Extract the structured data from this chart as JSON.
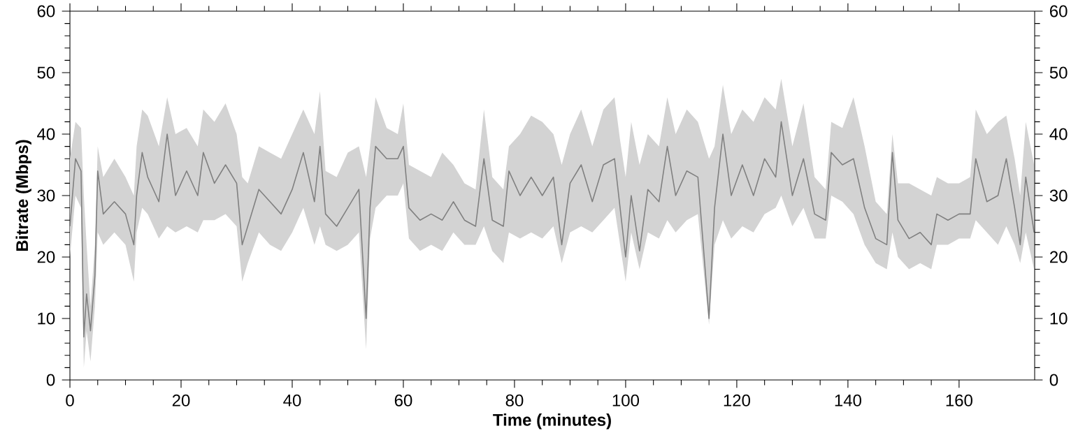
{
  "chart_data": {
    "type": "line",
    "xlabel": "Time (minutes)",
    "ylabel": "Bitrate (Mbps)",
    "xlim": [
      0,
      173.6
    ],
    "xticks": [
      0,
      20,
      40,
      60,
      80,
      100,
      120,
      140,
      160
    ],
    "ylim": [
      0,
      60
    ],
    "yticks": [
      0,
      10,
      20,
      30,
      40,
      50,
      60
    ],
    "y2lim": [
      0,
      60
    ],
    "y2ticks": [
      0,
      10,
      20,
      30,
      40,
      50,
      60
    ],
    "grid": false,
    "legend": false,
    "marker": "none",
    "line_style": "solid",
    "series": [
      {
        "color": "#808080",
        "x": [
          0,
          1,
          2,
          2.5,
          3,
          3.7,
          4.5,
          5,
          6,
          8,
          10,
          11.5,
          12,
          13,
          14,
          16,
          17.5,
          19,
          21,
          23,
          24,
          26,
          28,
          30,
          31,
          32,
          34,
          36,
          38,
          40,
          42,
          44,
          45,
          46,
          48,
          50,
          52,
          53.3,
          54,
          55,
          57,
          59,
          60,
          61,
          63,
          65,
          67,
          69,
          71,
          73,
          74.5,
          76,
          78,
          79,
          81,
          83,
          85,
          87,
          88.5,
          90,
          92,
          94,
          96,
          98,
          99,
          100,
          101,
          102.5,
          104,
          106,
          107.5,
          109,
          111,
          113,
          115,
          116,
          117.5,
          119,
          121,
          123,
          125,
          127,
          128,
          130,
          132,
          134,
          136,
          137,
          139,
          141,
          143,
          145,
          147,
          148,
          149,
          151,
          153,
          155,
          156,
          158,
          160,
          162,
          163,
          165,
          167,
          168.5,
          170,
          171,
          172,
          173.5
        ],
        "values": [
          25,
          36,
          34,
          7,
          14,
          8,
          17,
          34,
          27,
          29,
          27,
          22,
          30,
          37,
          33,
          29,
          40,
          30,
          34,
          30,
          37,
          32,
          35,
          32,
          22,
          25,
          31,
          29,
          27,
          31,
          37,
          29,
          38,
          27,
          25,
          28,
          31,
          10,
          28,
          38,
          36,
          36,
          38,
          28,
          26,
          27,
          26,
          29,
          26,
          25,
          36,
          26,
          25,
          34,
          30,
          33,
          30,
          33,
          22,
          32,
          35,
          29,
          35,
          36,
          28,
          20,
          30,
          21,
          31,
          29,
          38,
          30,
          34,
          33,
          10,
          28,
          40,
          30,
          35,
          30,
          36,
          33,
          42,
          30,
          36,
          27,
          26,
          37,
          35,
          36,
          28,
          23,
          22,
          37,
          26,
          23,
          24,
          22,
          27,
          26,
          27,
          27,
          36,
          29,
          30,
          36,
          28,
          22,
          33,
          24
        ],
        "lower": [
          20,
          30,
          28,
          2,
          8,
          3,
          12,
          24,
          22,
          24,
          22,
          16,
          24,
          28,
          27,
          23,
          25,
          24,
          25,
          24,
          26,
          26,
          27,
          25,
          16,
          19,
          24,
          22,
          21,
          24,
          28,
          22,
          25,
          22,
          21,
          22,
          24,
          5,
          23,
          28,
          30,
          30,
          32,
          23,
          21,
          22,
          21,
          24,
          22,
          22,
          25,
          21,
          19,
          24,
          23,
          24,
          23,
          25,
          19,
          24,
          25,
          24,
          26,
          28,
          22,
          16,
          24,
          18,
          24,
          23,
          26,
          24,
          26,
          27,
          9,
          22,
          26,
          23,
          25,
          24,
          27,
          28,
          30,
          25,
          28,
          23,
          23,
          30,
          29,
          27,
          22,
          19,
          18,
          24,
          20,
          18,
          19,
          18,
          22,
          22,
          23,
          23,
          26,
          24,
          22,
          25,
          22,
          19,
          24,
          18
        ],
        "upper": [
          36,
          42,
          41,
          30,
          22,
          12,
          22,
          38,
          33,
          36,
          33,
          30,
          38,
          44,
          43,
          38,
          46,
          40,
          41,
          38,
          44,
          42,
          45,
          40,
          33,
          32,
          38,
          37,
          36,
          40,
          44,
          40,
          47,
          34,
          33,
          37,
          38,
          33,
          38,
          46,
          41,
          40,
          45,
          35,
          34,
          33,
          37,
          35,
          32,
          31,
          44,
          33,
          31,
          38,
          40,
          43,
          42,
          40,
          35,
          40,
          44,
          38,
          44,
          46,
          39,
          33,
          42,
          35,
          40,
          38,
          46,
          40,
          44,
          42,
          36,
          38,
          48,
          40,
          44,
          42,
          46,
          44,
          49,
          38,
          45,
          33,
          31,
          42,
          41,
          46,
          38,
          29,
          27,
          40,
          32,
          32,
          31,
          30,
          33,
          32,
          32,
          33,
          44,
          40,
          42,
          43,
          36,
          30,
          42,
          35
        ]
      }
    ]
  }
}
